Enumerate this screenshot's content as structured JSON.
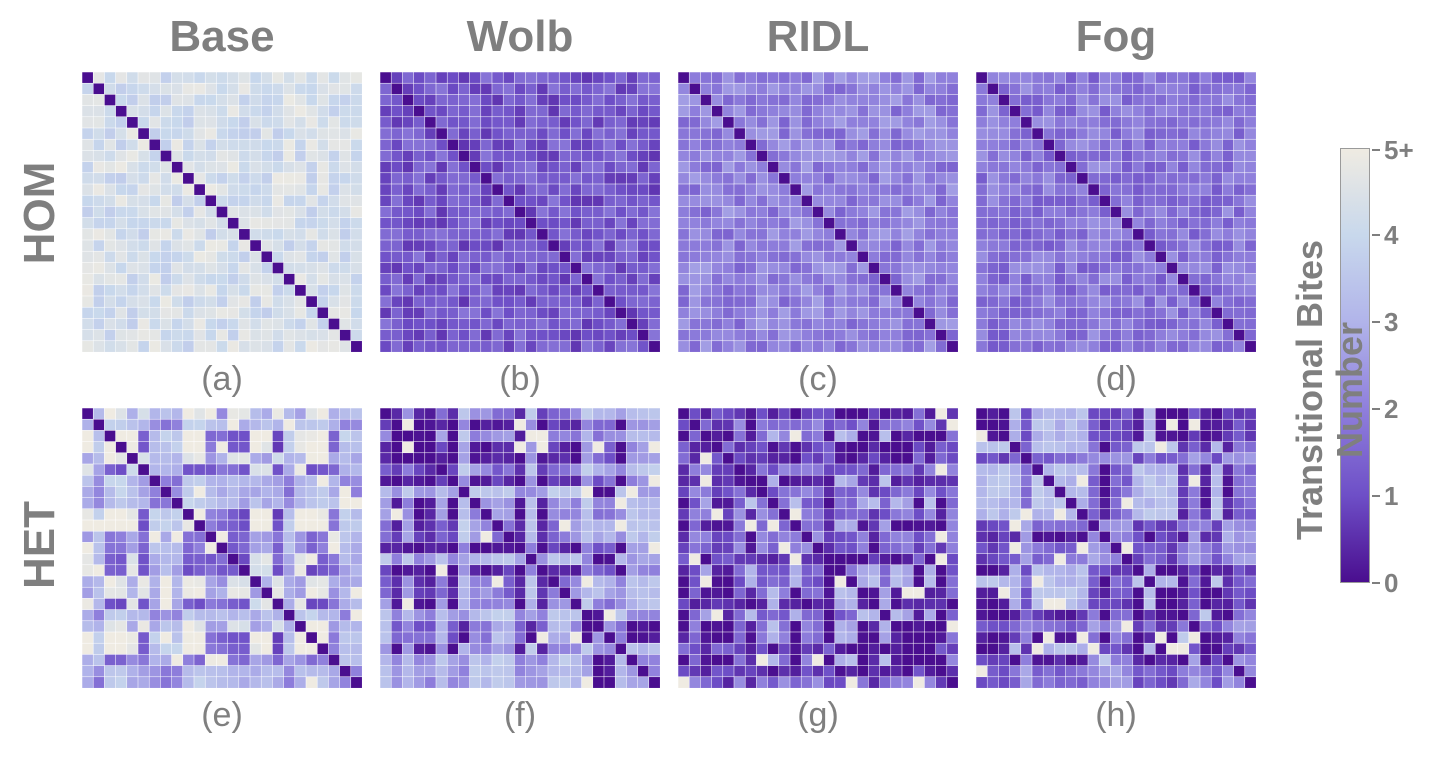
{
  "chart_data": {
    "type": "heatmap",
    "columns": [
      "Base",
      "Wolb",
      "RIDL",
      "Fog"
    ],
    "rows": [
      "HOM",
      "HET"
    ],
    "panels": [
      {
        "caption": "(a)",
        "row": "HOM",
        "column": "Base"
      },
      {
        "caption": "(b)",
        "row": "HOM",
        "column": "Wolb"
      },
      {
        "caption": "(c)",
        "row": "HOM",
        "column": "RIDL"
      },
      {
        "caption": "(d)",
        "row": "HOM",
        "column": "Fog"
      },
      {
        "caption": "(e)",
        "row": "HET",
        "column": "Base"
      },
      {
        "caption": "(f)",
        "row": "HET",
        "column": "Wolb"
      },
      {
        "caption": "(g)",
        "row": "HET",
        "column": "RIDL"
      },
      {
        "caption": "(h)",
        "row": "HET",
        "column": "Fog"
      }
    ],
    "grid_size": 25,
    "diagonal_value": 0,
    "typical_level": {
      "HOM": {
        "Base": 4.3,
        "Wolb": 1.2,
        "RIDL": 2.0,
        "Fog": 1.8
      },
      "HET": {
        "Base": 3.0,
        "Wolb": 1.0,
        "RIDL": 1.3,
        "Fog": 1.2
      }
    },
    "colorbar": {
      "title": "Transitional Bites Number",
      "ticks": [
        "0",
        "1",
        "2",
        "3",
        "4",
        "5+"
      ],
      "range": [
        0,
        5
      ],
      "colors": [
        "#4a0e8f",
        "#6e4fc7",
        "#8f7fdc",
        "#b1b4ea",
        "#c8d8ec",
        "#efebe2"
      ]
    }
  }
}
